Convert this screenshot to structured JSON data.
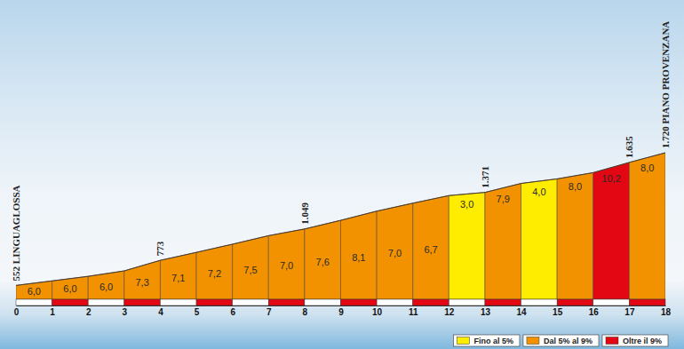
{
  "chart_data": {
    "type": "area",
    "x": [
      0,
      1,
      2,
      3,
      4,
      5,
      6,
      7,
      8,
      9,
      10,
      11,
      12,
      13,
      14,
      15,
      16,
      17,
      18
    ],
    "xlim": [
      0,
      18
    ],
    "xticks": [
      0,
      1,
      2,
      3,
      4,
      5,
      6,
      7,
      8,
      9,
      10,
      11,
      12,
      13,
      14,
      15,
      16,
      17,
      18
    ],
    "ylim": [
      430,
      1900
    ],
    "tick_labels": "x",
    "series": [
      {
        "values": [
          552,
          592,
          632,
          680,
          773,
          843,
          915,
          990,
          1049,
          1125,
          1206,
          1276,
          1343,
          1371,
          1450,
          1490,
          1545,
          1635,
          1720
        ]
      }
    ],
    "gradients": {
      "values": [
        6.0,
        6.0,
        6.0,
        7.3,
        7.1,
        7.2,
        7.5,
        7.0,
        7.6,
        8.1,
        7.0,
        6.7,
        3.0,
        7.9,
        4.0,
        8.0,
        10.2,
        8.0
      ],
      "value_labels": [
        "6,0",
        "6,0",
        "6,0",
        "7,3",
        "7,1",
        "7,2",
        "7,5",
        "7,0",
        "7,6",
        "8,1",
        "7,0",
        "6,7",
        "3,0",
        "7,9",
        "4,0",
        "8,0",
        "10,2",
        "8,0"
      ],
      "colors": [
        "#f39200",
        "#f39200",
        "#f39200",
        "#f39200",
        "#f39200",
        "#f39200",
        "#f39200",
        "#f39200",
        "#f39200",
        "#f39200",
        "#f39200",
        "#f39200",
        "#ffed00",
        "#f39200",
        "#ffed00",
        "#f39200",
        "#e30613",
        "#f39200"
      ]
    },
    "data_labels": true,
    "annotations": [
      {
        "x": 0,
        "value": 552,
        "label": "552 LINGUAGLOSSA"
      },
      {
        "x": 4,
        "value": 773,
        "label": "773"
      },
      {
        "x": 8,
        "value": 1049,
        "label": "1.049"
      },
      {
        "x": 13,
        "value": 1371,
        "label": "1.371"
      },
      {
        "x": 17,
        "value": 1635,
        "label": "1.635"
      },
      {
        "x": 18,
        "value": 1720,
        "label": "1.720 PIANO PROVENZANA"
      }
    ],
    "legend": "bottom-right",
    "legend_items": [
      {
        "label": "Fino al 5%",
        "color": "#ffed00"
      },
      {
        "label": "Dal 5% al 9%",
        "color": "#f39200"
      },
      {
        "label": "Oltre il 9%",
        "color": "#e30613"
      }
    ]
  }
}
